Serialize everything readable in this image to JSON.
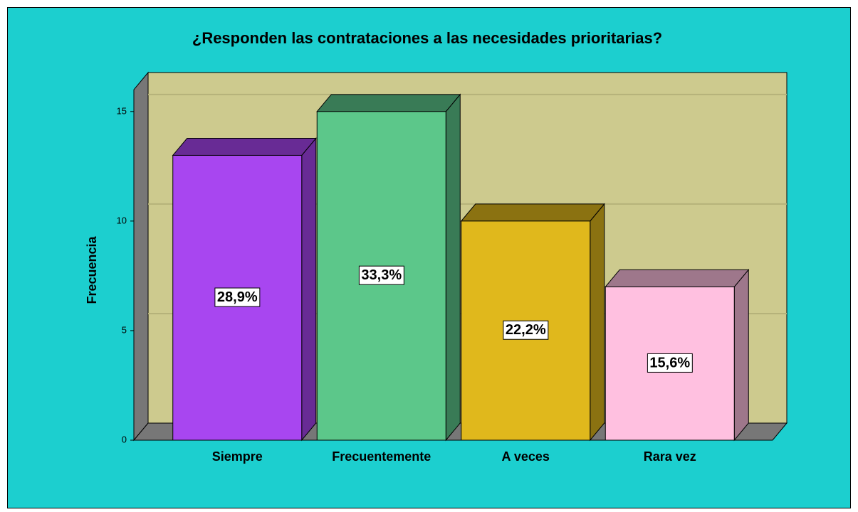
{
  "chart_data": {
    "type": "bar3d",
    "title": "¿Responden las contrataciones a las necesidades prioritarias?",
    "y_label": "Frecuencia",
    "categories": [
      "Siempre",
      "Frecuentemente",
      "A veces",
      "Rara vez"
    ],
    "values": [
      13,
      15,
      10,
      7
    ],
    "data_labels": [
      "28,9%",
      "33,3%",
      "22,2%",
      "15,6%"
    ],
    "colors": [
      "#a846f0",
      "#5cc78a",
      "#e0b81c",
      "#ffc0e0"
    ],
    "ylim": [
      0,
      16
    ],
    "yticks": [
      0,
      5,
      10,
      15
    ],
    "grid": true
  }
}
